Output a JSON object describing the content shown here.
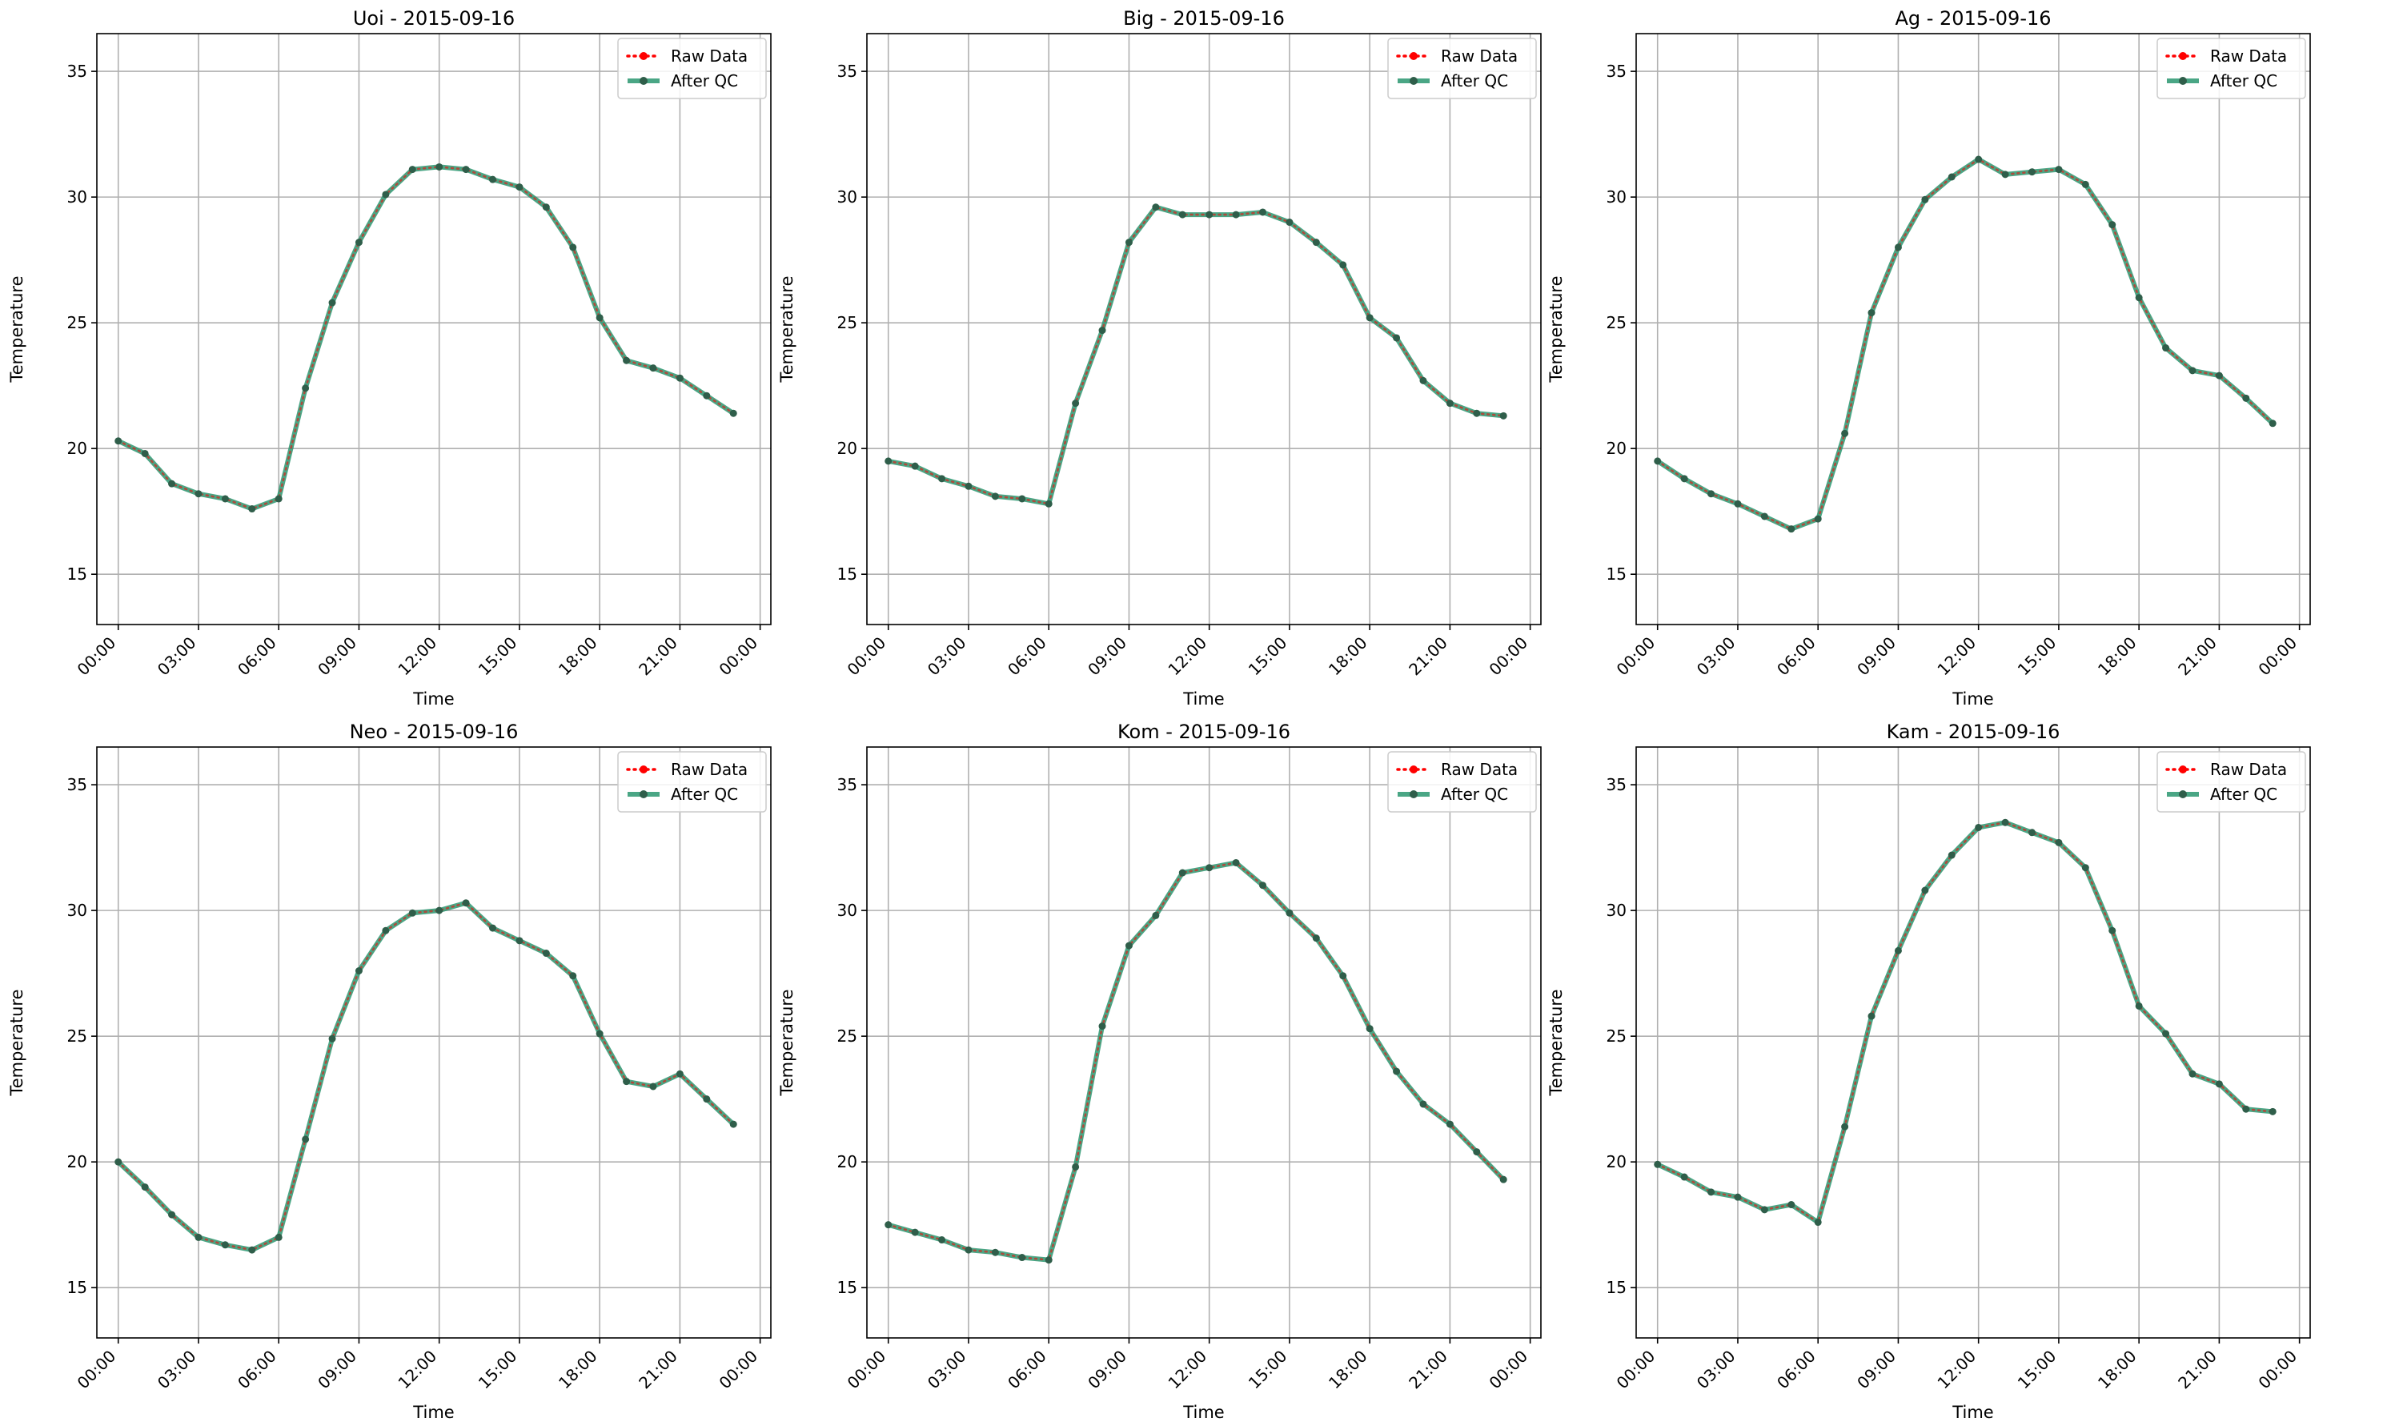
{
  "chart_data": [
    {
      "type": "line",
      "title": "Uoi - 2015-09-16",
      "xlabel": "Time",
      "ylabel": "Temperature",
      "ylim": [
        13,
        36.5
      ],
      "yticks": [
        15,
        20,
        25,
        30,
        35
      ],
      "xticks": [
        "00:00",
        "03:00",
        "06:00",
        "09:00",
        "12:00",
        "15:00",
        "18:00",
        "21:00",
        "00:00"
      ],
      "x_hours": [
        0,
        1,
        2,
        3,
        4,
        5,
        6,
        7,
        8,
        9,
        10,
        11,
        12,
        13,
        14,
        15,
        16,
        17,
        18,
        19,
        20,
        21,
        22,
        23
      ],
      "legend_position": "top-right",
      "grid": true,
      "series": [
        {
          "name": "Raw Data",
          "color": "#ff0000",
          "style": "dotted",
          "values": [
            20.3,
            19.8,
            18.6,
            18.2,
            18.0,
            17.6,
            18.0,
            22.4,
            25.8,
            28.2,
            30.1,
            31.1,
            31.2,
            31.1,
            30.7,
            30.4,
            29.6,
            28.0,
            25.2,
            23.5,
            23.2,
            22.8,
            22.1,
            21.4
          ]
        },
        {
          "name": "After QC",
          "color": "#2a9670",
          "style": "solid",
          "values": [
            20.3,
            19.8,
            18.6,
            18.2,
            18.0,
            17.6,
            18.0,
            22.4,
            25.8,
            28.2,
            30.1,
            31.1,
            31.2,
            31.1,
            30.7,
            30.4,
            29.6,
            28.0,
            25.2,
            23.5,
            23.2,
            22.8,
            22.1,
            21.4
          ]
        }
      ]
    },
    {
      "type": "line",
      "title": "Big - 2015-09-16",
      "xlabel": "Time",
      "ylabel": "Temperature",
      "ylim": [
        13,
        36.5
      ],
      "yticks": [
        15,
        20,
        25,
        30,
        35
      ],
      "xticks": [
        "00:00",
        "03:00",
        "06:00",
        "09:00",
        "12:00",
        "15:00",
        "18:00",
        "21:00",
        "00:00"
      ],
      "x_hours": [
        0,
        1,
        2,
        3,
        4,
        5,
        6,
        7,
        8,
        9,
        10,
        11,
        12,
        13,
        14,
        15,
        16,
        17,
        18,
        19,
        20,
        21,
        22,
        23
      ],
      "legend_position": "top-right",
      "grid": true,
      "series": [
        {
          "name": "Raw Data",
          "color": "#ff0000",
          "style": "dotted",
          "values": [
            19.5,
            19.3,
            18.8,
            18.5,
            18.1,
            18.0,
            17.8,
            21.8,
            24.7,
            28.2,
            29.6,
            29.3,
            29.3,
            29.3,
            29.4,
            29.0,
            28.2,
            27.3,
            25.2,
            24.4,
            22.7,
            21.8,
            21.4,
            21.3
          ]
        },
        {
          "name": "After QC",
          "color": "#2a9670",
          "style": "solid",
          "values": [
            19.5,
            19.3,
            18.8,
            18.5,
            18.1,
            18.0,
            17.8,
            21.8,
            24.7,
            28.2,
            29.6,
            29.3,
            29.3,
            29.3,
            29.4,
            29.0,
            28.2,
            27.3,
            25.2,
            24.4,
            22.7,
            21.8,
            21.4,
            21.3
          ]
        }
      ]
    },
    {
      "type": "line",
      "title": "Ag - 2015-09-16",
      "xlabel": "Time",
      "ylabel": "Temperature",
      "ylim": [
        13,
        36.5
      ],
      "yticks": [
        15,
        20,
        25,
        30,
        35
      ],
      "xticks": [
        "00:00",
        "03:00",
        "06:00",
        "09:00",
        "12:00",
        "15:00",
        "18:00",
        "21:00",
        "00:00"
      ],
      "x_hours": [
        0,
        1,
        2,
        3,
        4,
        5,
        6,
        7,
        8,
        9,
        10,
        11,
        12,
        13,
        14,
        15,
        16,
        17,
        18,
        19,
        20,
        21,
        22,
        23
      ],
      "legend_position": "top-right",
      "grid": true,
      "series": [
        {
          "name": "Raw Data",
          "color": "#ff0000",
          "style": "dotted",
          "values": [
            19.5,
            18.8,
            18.2,
            17.8,
            17.3,
            16.8,
            17.2,
            20.6,
            25.4,
            28.0,
            29.9,
            30.8,
            31.5,
            30.9,
            31.0,
            31.1,
            30.5,
            28.9,
            26.0,
            24.0,
            23.1,
            22.9,
            22.0,
            21.0
          ]
        },
        {
          "name": "After QC",
          "color": "#2a9670",
          "style": "solid",
          "values": [
            19.5,
            18.8,
            18.2,
            17.8,
            17.3,
            16.8,
            17.2,
            20.6,
            25.4,
            28.0,
            29.9,
            30.8,
            31.5,
            30.9,
            31.0,
            31.1,
            30.5,
            28.9,
            26.0,
            24.0,
            23.1,
            22.9,
            22.0,
            21.0
          ]
        }
      ]
    },
    {
      "type": "line",
      "title": "Neo - 2015-09-16",
      "xlabel": "Time",
      "ylabel": "Temperature",
      "ylim": [
        13,
        36.5
      ],
      "yticks": [
        15,
        20,
        25,
        30,
        35
      ],
      "xticks": [
        "00:00",
        "03:00",
        "06:00",
        "09:00",
        "12:00",
        "15:00",
        "18:00",
        "21:00",
        "00:00"
      ],
      "x_hours": [
        0,
        1,
        2,
        3,
        4,
        5,
        6,
        7,
        8,
        9,
        10,
        11,
        12,
        13,
        14,
        15,
        16,
        17,
        18,
        19,
        20,
        21,
        22,
        23
      ],
      "legend_position": "top-right",
      "grid": true,
      "series": [
        {
          "name": "Raw Data",
          "color": "#ff0000",
          "style": "dotted",
          "values": [
            20.0,
            19.0,
            17.9,
            17.0,
            16.7,
            16.5,
            17.0,
            20.9,
            24.9,
            27.6,
            29.2,
            29.9,
            30.0,
            30.3,
            29.3,
            28.8,
            28.3,
            27.4,
            25.1,
            23.2,
            23.0,
            23.5,
            22.5,
            21.5
          ]
        },
        {
          "name": "After QC",
          "color": "#2a9670",
          "style": "solid",
          "values": [
            20.0,
            19.0,
            17.9,
            17.0,
            16.7,
            16.5,
            17.0,
            20.9,
            24.9,
            27.6,
            29.2,
            29.9,
            30.0,
            30.3,
            29.3,
            28.8,
            28.3,
            27.4,
            25.1,
            23.2,
            23.0,
            23.5,
            22.5,
            21.5
          ]
        }
      ]
    },
    {
      "type": "line",
      "title": "Kom - 2015-09-16",
      "xlabel": "Time",
      "ylabel": "Temperature",
      "ylim": [
        13,
        36.5
      ],
      "yticks": [
        15,
        20,
        25,
        30,
        35
      ],
      "xticks": [
        "00:00",
        "03:00",
        "06:00",
        "09:00",
        "12:00",
        "15:00",
        "18:00",
        "21:00",
        "00:00"
      ],
      "x_hours": [
        0,
        1,
        2,
        3,
        4,
        5,
        6,
        7,
        8,
        9,
        10,
        11,
        12,
        13,
        14,
        15,
        16,
        17,
        18,
        19,
        20,
        21,
        22,
        23
      ],
      "legend_position": "top-right",
      "grid": true,
      "series": [
        {
          "name": "Raw Data",
          "color": "#ff0000",
          "style": "dotted",
          "values": [
            17.5,
            17.2,
            16.9,
            16.5,
            16.4,
            16.2,
            16.1,
            19.8,
            25.4,
            28.6,
            29.8,
            31.5,
            31.7,
            31.9,
            31.0,
            29.9,
            28.9,
            27.4,
            25.3,
            23.6,
            22.3,
            21.5,
            20.4,
            19.3
          ]
        },
        {
          "name": "After QC",
          "color": "#2a9670",
          "style": "solid",
          "values": [
            17.5,
            17.2,
            16.9,
            16.5,
            16.4,
            16.2,
            16.1,
            19.8,
            25.4,
            28.6,
            29.8,
            31.5,
            31.7,
            31.9,
            31.0,
            29.9,
            28.9,
            27.4,
            25.3,
            23.6,
            22.3,
            21.5,
            20.4,
            19.3
          ]
        }
      ]
    },
    {
      "type": "line",
      "title": "Kam - 2015-09-16",
      "xlabel": "Time",
      "ylabel": "Temperature",
      "ylim": [
        13,
        36.5
      ],
      "yticks": [
        15,
        20,
        25,
        30,
        35
      ],
      "xticks": [
        "00:00",
        "03:00",
        "06:00",
        "09:00",
        "12:00",
        "15:00",
        "18:00",
        "21:00",
        "00:00"
      ],
      "x_hours": [
        0,
        1,
        2,
        3,
        4,
        5,
        6,
        7,
        8,
        9,
        10,
        11,
        12,
        13,
        14,
        15,
        16,
        17,
        18,
        19,
        20,
        21,
        22,
        23
      ],
      "legend_position": "top-right",
      "grid": true,
      "series": [
        {
          "name": "Raw Data",
          "color": "#ff0000",
          "style": "dotted",
          "values": [
            19.9,
            19.4,
            18.8,
            18.6,
            18.1,
            18.3,
            17.6,
            21.4,
            25.8,
            28.4,
            30.8,
            32.2,
            33.3,
            33.5,
            33.1,
            32.7,
            31.7,
            29.2,
            26.2,
            25.1,
            23.5,
            23.1,
            22.1,
            22.0
          ]
        },
        {
          "name": "After QC",
          "color": "#2a9670",
          "style": "solid",
          "values": [
            19.9,
            19.4,
            18.8,
            18.6,
            18.1,
            18.3,
            17.6,
            21.4,
            25.8,
            28.4,
            30.8,
            32.2,
            33.3,
            33.5,
            33.1,
            32.7,
            31.7,
            29.2,
            26.2,
            25.1,
            23.5,
            23.1,
            22.1,
            22.0
          ]
        }
      ]
    }
  ]
}
